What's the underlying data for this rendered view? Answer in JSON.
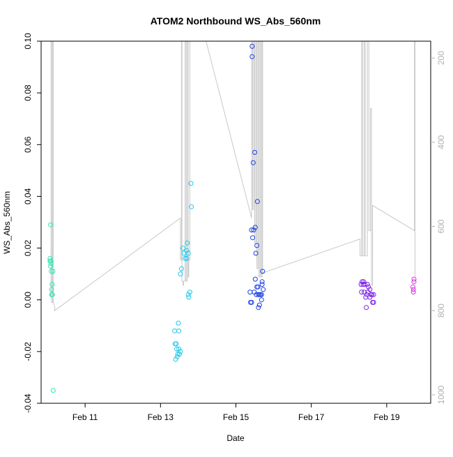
{
  "chart_data": {
    "type": "scatter",
    "title": "ATOM2 Northbound WS_Abs_560nm",
    "xlabel": "Date",
    "ylabel": "WS_Abs_560nm",
    "xlim": [
      "2025-02-09T20:00",
      "2025-02-20T04:00"
    ],
    "ylim": [
      -0.04,
      0.1
    ],
    "y2lim": [
      1020,
      160
    ],
    "x_ticks": [
      {
        "label": "Feb 11",
        "value": "2025-02-11T00:00"
      },
      {
        "label": "Feb 13",
        "value": "2025-02-13T00:00"
      },
      {
        "label": "Feb 15",
        "value": "2025-02-15T00:00"
      },
      {
        "label": "Feb 17",
        "value": "2025-02-17T00:00"
      },
      {
        "label": "Feb 19",
        "value": "2025-02-19T00:00"
      }
    ],
    "y_ticks": [
      {
        "label": "-0.04",
        "value": -0.04
      },
      {
        "label": "-0.02",
        "value": -0.02
      },
      {
        "label": "0.00",
        "value": 0.0
      },
      {
        "label": "0.02",
        "value": 0.02
      },
      {
        "label": "0.04",
        "value": 0.04
      },
      {
        "label": "0.06",
        "value": 0.06
      },
      {
        "label": "0.08",
        "value": 0.08
      },
      {
        "label": "0.10",
        "value": 0.1
      }
    ],
    "y2_ticks": [
      {
        "label": "200",
        "value": 200
      },
      {
        "label": "400",
        "value": 400
      },
      {
        "label": "600",
        "value": 600
      },
      {
        "label": "800",
        "value": 800
      },
      {
        "label": "1000",
        "value": 1000
      }
    ],
    "grid": false,
    "colors": {
      "line": "#c8c8c8",
      "axis": "#000000",
      "right_axis": "#b0b0b0"
    },
    "points": [
      {
        "x": "2025-02-10T02:00",
        "y": 0.029,
        "color": "#2ee8b6"
      },
      {
        "x": "2025-02-10T01:40",
        "y": 0.016,
        "color": "#2ee8b6"
      },
      {
        "x": "2025-02-10T01:40",
        "y": 0.015,
        "color": "#2ee8b6"
      },
      {
        "x": "2025-02-10T02:10",
        "y": 0.015,
        "color": "#2ee8b6"
      },
      {
        "x": "2025-02-10T02:20",
        "y": 0.014,
        "color": "#2ee8b6"
      },
      {
        "x": "2025-02-10T02:00",
        "y": 0.013,
        "color": "#2ee8b6"
      },
      {
        "x": "2025-02-10T02:30",
        "y": 0.011,
        "color": "#2ee8b6"
      },
      {
        "x": "2025-02-10T03:30",
        "y": 0.011,
        "color": "#2ee8b6"
      },
      {
        "x": "2025-02-10T03:00",
        "y": 0.006,
        "color": "#2ee8b6"
      },
      {
        "x": "2025-02-10T02:40",
        "y": 0.004,
        "color": "#2ee8b6"
      },
      {
        "x": "2025-02-10T02:40",
        "y": 0.002,
        "color": "#2ee8b6"
      },
      {
        "x": "2025-02-10T03:10",
        "y": 0.002,
        "color": "#2ee8b6"
      },
      {
        "x": "2025-02-10T03:40",
        "y": -0.035,
        "color": "#2ee8b6"
      },
      {
        "x": "2025-02-13T19:20",
        "y": 0.045,
        "color": "#20c8e8"
      },
      {
        "x": "2025-02-13T19:40",
        "y": 0.036,
        "color": "#20c8e8"
      },
      {
        "x": "2025-02-13T17:00",
        "y": 0.022,
        "color": "#20c8e8"
      },
      {
        "x": "2025-02-13T14:20",
        "y": 0.02,
        "color": "#20c8e8"
      },
      {
        "x": "2025-02-13T16:40",
        "y": 0.019,
        "color": "#20c8e8"
      },
      {
        "x": "2025-02-13T15:00",
        "y": 0.018,
        "color": "#20c8e8"
      },
      {
        "x": "2025-02-13T17:40",
        "y": 0.018,
        "color": "#20c8e8"
      },
      {
        "x": "2025-02-13T15:40",
        "y": 0.016,
        "color": "#20c8e8"
      },
      {
        "x": "2025-02-13T16:40",
        "y": 0.016,
        "color": "#20c8e8"
      },
      {
        "x": "2025-02-13T13:20",
        "y": 0.012,
        "color": "#20c8e8"
      },
      {
        "x": "2025-02-13T12:40",
        "y": 0.01,
        "color": "#20c8e8"
      },
      {
        "x": "2025-02-13T18:40",
        "y": 0.003,
        "color": "#20c8e8"
      },
      {
        "x": "2025-02-13T17:40",
        "y": 0.002,
        "color": "#20c8e8"
      },
      {
        "x": "2025-02-13T18:00",
        "y": 0.001,
        "color": "#20c8e8"
      },
      {
        "x": "2025-02-13T11:20",
        "y": -0.009,
        "color": "#20c8e8"
      },
      {
        "x": "2025-02-13T09:00",
        "y": -0.012,
        "color": "#20c8e8"
      },
      {
        "x": "2025-02-13T11:40",
        "y": -0.012,
        "color": "#20c8e8"
      },
      {
        "x": "2025-02-13T09:20",
        "y": -0.017,
        "color": "#20c8e8"
      },
      {
        "x": "2025-02-13T10:00",
        "y": -0.017,
        "color": "#20c8e8"
      },
      {
        "x": "2025-02-13T10:20",
        "y": -0.019,
        "color": "#20c8e8"
      },
      {
        "x": "2025-02-13T11:40",
        "y": -0.019,
        "color": "#20c8e8"
      },
      {
        "x": "2025-02-13T12:40",
        "y": -0.02,
        "color": "#20c8e8"
      },
      {
        "x": "2025-02-13T11:00",
        "y": -0.021,
        "color": "#20c8e8"
      },
      {
        "x": "2025-02-13T12:00",
        "y": -0.021,
        "color": "#20c8e8"
      },
      {
        "x": "2025-02-13T10:40",
        "y": -0.022,
        "color": "#20c8e8"
      },
      {
        "x": "2025-02-13T09:40",
        "y": -0.023,
        "color": "#20c8e8"
      },
      {
        "x": "2025-02-15T10:20",
        "y": 0.098,
        "color": "#1a3ee8"
      },
      {
        "x": "2025-02-15T10:20",
        "y": 0.094,
        "color": "#1a3ee8"
      },
      {
        "x": "2025-02-15T12:00",
        "y": 0.057,
        "color": "#1a3ee8"
      },
      {
        "x": "2025-02-15T11:00",
        "y": 0.053,
        "color": "#1a3ee8"
      },
      {
        "x": "2025-02-15T13:40",
        "y": 0.038,
        "color": "#1a3ee8"
      },
      {
        "x": "2025-02-15T12:20",
        "y": 0.028,
        "color": "#1a3ee8"
      },
      {
        "x": "2025-02-15T10:00",
        "y": 0.027,
        "color": "#1a3ee8"
      },
      {
        "x": "2025-02-15T11:20",
        "y": 0.027,
        "color": "#1a3ee8"
      },
      {
        "x": "2025-02-15T10:40",
        "y": 0.024,
        "color": "#1a3ee8"
      },
      {
        "x": "2025-02-15T13:20",
        "y": 0.021,
        "color": "#1a3ee8"
      },
      {
        "x": "2025-02-15T12:40",
        "y": 0.018,
        "color": "#1a3ee8"
      },
      {
        "x": "2025-02-15T17:00",
        "y": 0.011,
        "color": "#1a3ee8"
      },
      {
        "x": "2025-02-15T12:20",
        "y": 0.008,
        "color": "#1a3ee8"
      },
      {
        "x": "2025-02-15T16:40",
        "y": 0.007,
        "color": "#1a3ee8"
      },
      {
        "x": "2025-02-15T16:40",
        "y": 0.006,
        "color": "#1a3ee8"
      },
      {
        "x": "2025-02-15T13:20",
        "y": 0.005,
        "color": "#1a3ee8"
      },
      {
        "x": "2025-02-15T14:00",
        "y": 0.005,
        "color": "#1a3ee8"
      },
      {
        "x": "2025-02-15T17:20",
        "y": 0.004,
        "color": "#1a3ee8"
      },
      {
        "x": "2025-02-15T09:00",
        "y": 0.003,
        "color": "#1a3ee8"
      },
      {
        "x": "2025-02-15T11:40",
        "y": 0.003,
        "color": "#1a3ee8"
      },
      {
        "x": "2025-02-15T13:00",
        "y": 0.002,
        "color": "#1a3ee8"
      },
      {
        "x": "2025-02-15T14:20",
        "y": 0.002,
        "color": "#1a3ee8"
      },
      {
        "x": "2025-02-15T15:00",
        "y": 0.002,
        "color": "#1a3ee8"
      },
      {
        "x": "2025-02-15T15:40",
        "y": 0.002,
        "color": "#1a3ee8"
      },
      {
        "x": "2025-02-15T16:20",
        "y": 0.002,
        "color": "#1a3ee8"
      },
      {
        "x": "2025-02-15T16:20",
        "y": 0.0,
        "color": "#1a3ee8"
      },
      {
        "x": "2025-02-15T09:20",
        "y": -0.001,
        "color": "#1a3ee8"
      },
      {
        "x": "2025-02-15T10:00",
        "y": -0.001,
        "color": "#1a3ee8"
      },
      {
        "x": "2025-02-15T15:00",
        "y": -0.002,
        "color": "#1a3ee8"
      },
      {
        "x": "2025-02-15T14:20",
        "y": -0.003,
        "color": "#1a3ee8"
      },
      {
        "x": "2025-02-18T08:20",
        "y": 0.007,
        "color": "#7a1ee8"
      },
      {
        "x": "2025-02-18T09:20",
        "y": 0.007,
        "color": "#7a1ee8"
      },
      {
        "x": "2025-02-18T07:40",
        "y": 0.006,
        "color": "#7a1ee8"
      },
      {
        "x": "2025-02-18T09:00",
        "y": 0.006,
        "color": "#7a1ee8"
      },
      {
        "x": "2025-02-18T10:00",
        "y": 0.006,
        "color": "#7a1ee8"
      },
      {
        "x": "2025-02-18T11:40",
        "y": 0.006,
        "color": "#7a1ee8"
      },
      {
        "x": "2025-02-18T12:20",
        "y": 0.005,
        "color": "#7a1ee8"
      },
      {
        "x": "2025-02-18T13:20",
        "y": 0.004,
        "color": "#7a1ee8"
      },
      {
        "x": "2025-02-18T09:40",
        "y": 0.003,
        "color": "#7a1ee8"
      },
      {
        "x": "2025-02-18T12:00",
        "y": 0.003,
        "color": "#7a1ee8"
      },
      {
        "x": "2025-02-18T08:00",
        "y": 0.003,
        "color": "#7a1ee8"
      },
      {
        "x": "2025-02-18T14:00",
        "y": 0.002,
        "color": "#7a1ee8"
      },
      {
        "x": "2025-02-18T11:20",
        "y": 0.002,
        "color": "#7a1ee8"
      },
      {
        "x": "2025-02-18T15:40",
        "y": 0.002,
        "color": "#7a1ee8"
      },
      {
        "x": "2025-02-18T14:40",
        "y": 0.002,
        "color": "#7a1ee8"
      },
      {
        "x": "2025-02-18T13:20",
        "y": 0.001,
        "color": "#7a1ee8"
      },
      {
        "x": "2025-02-18T10:40",
        "y": 0.001,
        "color": "#7a1ee8"
      },
      {
        "x": "2025-02-18T15:00",
        "y": -0.001,
        "color": "#7a1ee8"
      },
      {
        "x": "2025-02-18T15:40",
        "y": -0.001,
        "color": "#7a1ee8"
      },
      {
        "x": "2025-02-18T11:00",
        "y": -0.003,
        "color": "#7a1ee8"
      },
      {
        "x": "2025-02-19T17:20",
        "y": 0.008,
        "color": "#e030e8"
      },
      {
        "x": "2025-02-19T17:20",
        "y": 0.007,
        "color": "#e030e8"
      },
      {
        "x": "2025-02-19T16:40",
        "y": 0.005,
        "color": "#e030e8"
      },
      {
        "x": "2025-02-19T17:00",
        "y": 0.004,
        "color": "#e030e8"
      },
      {
        "x": "2025-02-19T17:00",
        "y": 0.003,
        "color": "#e030e8"
      }
    ],
    "secondary_line": [
      [
        "2025-02-10T02:20",
        770
      ],
      [
        "2025-02-10T02:20",
        160
      ],
      [
        "2025-02-10T02:40",
        160
      ],
      [
        "2025-02-10T02:40",
        780
      ],
      [
        "2025-02-10T03:20",
        780
      ],
      [
        "2025-02-10T03:20",
        160
      ],
      [
        "2025-02-10T03:40",
        160
      ],
      [
        "2025-02-10T03:40",
        780
      ],
      [
        "2025-02-10T04:40",
        790
      ],
      [
        "2025-02-10T04:40",
        800
      ],
      [
        "2025-02-13T12:40",
        580
      ],
      [
        "2025-02-13T12:40",
        680
      ],
      [
        "2025-02-13T13:20",
        680
      ],
      [
        "2025-02-13T13:20",
        160
      ],
      [
        "2025-02-13T13:40",
        160
      ],
      [
        "2025-02-13T13:40",
        730
      ],
      [
        "2025-02-13T14:20",
        730
      ],
      [
        "2025-02-13T14:20",
        740
      ],
      [
        "2025-02-13T14:40",
        740
      ],
      [
        "2025-02-13T14:40",
        730
      ],
      [
        "2025-02-13T15:40",
        730
      ],
      [
        "2025-02-13T15:40",
        160
      ],
      [
        "2025-02-13T16:20",
        160
      ],
      [
        "2025-02-13T16:20",
        730
      ],
      [
        "2025-02-13T17:00",
        730
      ],
      [
        "2025-02-13T17:00",
        160
      ],
      [
        "2025-02-13T17:40",
        160
      ],
      [
        "2025-02-13T17:40",
        720
      ],
      [
        "2025-02-13T18:00",
        720
      ],
      [
        "2025-02-13T18:00",
        680
      ],
      [
        "2025-02-13T18:40",
        680
      ],
      [
        "2025-02-13T18:40",
        160
      ],
      [
        "2025-02-14T05:00",
        160
      ],
      [
        "2025-02-15T10:00",
        580
      ],
      [
        "2025-02-15T10:00",
        160
      ],
      [
        "2025-02-15T10:40",
        160
      ],
      [
        "2025-02-15T10:40",
        560
      ],
      [
        "2025-02-15T11:20",
        560
      ],
      [
        "2025-02-15T11:20",
        160
      ],
      [
        "2025-02-15T12:00",
        160
      ],
      [
        "2025-02-15T12:00",
        640
      ],
      [
        "2025-02-15T12:40",
        640
      ],
      [
        "2025-02-15T12:40",
        160
      ],
      [
        "2025-02-15T13:20",
        160
      ],
      [
        "2025-02-15T13:20",
        700
      ],
      [
        "2025-02-15T14:00",
        700
      ],
      [
        "2025-02-15T14:00",
        160
      ],
      [
        "2025-02-15T14:40",
        160
      ],
      [
        "2025-02-15T14:40",
        720
      ],
      [
        "2025-02-15T15:20",
        720
      ],
      [
        "2025-02-15T15:20",
        160
      ],
      [
        "2025-02-15T16:00",
        160
      ],
      [
        "2025-02-15T16:00",
        720
      ],
      [
        "2025-02-15T16:40",
        720
      ],
      [
        "2025-02-15T16:40",
        160
      ],
      [
        "2025-02-15T17:00",
        160
      ],
      [
        "2025-02-15T17:00",
        710
      ],
      [
        "2025-02-15T17:20",
        710
      ],
      [
        "2025-02-18T07:00",
        630
      ],
      [
        "2025-02-18T07:00",
        670
      ],
      [
        "2025-02-18T08:00",
        670
      ],
      [
        "2025-02-18T08:00",
        160
      ],
      [
        "2025-02-18T08:40",
        160
      ],
      [
        "2025-02-18T08:40",
        670
      ],
      [
        "2025-02-18T09:40",
        670
      ],
      [
        "2025-02-18T09:40",
        160
      ],
      [
        "2025-02-18T10:20",
        160
      ],
      [
        "2025-02-18T10:20",
        670
      ],
      [
        "2025-02-18T11:40",
        670
      ],
      [
        "2025-02-18T11:40",
        160
      ],
      [
        "2025-02-18T12:40",
        160
      ],
      [
        "2025-02-18T12:40",
        610
      ],
      [
        "2025-02-18T13:40",
        610
      ],
      [
        "2025-02-18T13:40",
        320
      ],
      [
        "2025-02-18T14:20",
        320
      ],
      [
        "2025-02-18T14:20",
        740
      ],
      [
        "2025-02-18T15:00",
        740
      ],
      [
        "2025-02-18T15:00",
        550
      ],
      [
        "2025-02-19T17:40",
        610
      ],
      [
        "2025-02-19T17:40",
        160
      ],
      [
        "2025-02-19T18:00",
        160
      ],
      [
        "2025-02-19T18:00",
        720
      ],
      [
        "2025-02-19T18:00",
        720
      ]
    ]
  }
}
